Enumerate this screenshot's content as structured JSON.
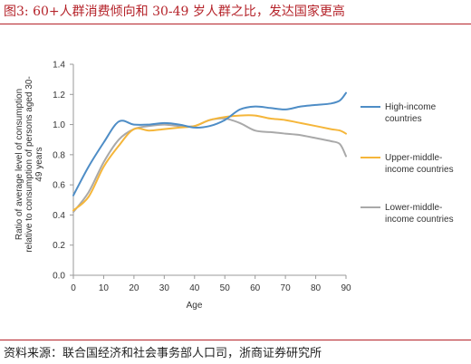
{
  "header": {
    "figure_title": "图3:   60+人群消费倾向和 30-49 岁人群之比，发达国家更高"
  },
  "footer": {
    "source": "资料来源：联合国经济和社会事务部人口司，浙商证券研究所"
  },
  "colors": {
    "accent": "#b5232a",
    "high": "#4e8dc6",
    "upper": "#f5b63a",
    "lower": "#a9a9a9",
    "axis": "#9a9a9a"
  },
  "chart_data": {
    "type": "line",
    "title": "",
    "xlabel": "Age",
    "ylabel": "Ratio of average level of consumption relative to consumption of persons aged 30-49 years",
    "ylabel_lines": [
      "Ratio of average level of consumption",
      "relative to consumption of persons aged 30-",
      "49 years"
    ],
    "xlim": [
      0,
      90
    ],
    "ylim": [
      0,
      1.4
    ],
    "xticks": [
      "0",
      "10",
      "20",
      "30",
      "40",
      "50",
      "60",
      "70",
      "80",
      "90"
    ],
    "yticks": [
      "0.0",
      "0.2",
      "0.4",
      "0.6",
      "0.8",
      "1.0",
      "1.2",
      "1.4"
    ],
    "grid": false,
    "legend_position": "right",
    "x": [
      0,
      5,
      10,
      15,
      20,
      25,
      30,
      35,
      40,
      45,
      50,
      55,
      60,
      65,
      70,
      75,
      80,
      85,
      88,
      90
    ],
    "series": [
      {
        "name": "High-income countries",
        "legend_lines": [
          "High-income",
          "countries"
        ],
        "color": "#4e8dc6",
        "values": [
          0.53,
          0.72,
          0.88,
          1.02,
          1.0,
          1.0,
          1.01,
          1.0,
          0.98,
          0.99,
          1.03,
          1.1,
          1.12,
          1.11,
          1.1,
          1.12,
          1.13,
          1.14,
          1.16,
          1.21
        ]
      },
      {
        "name": "Upper-middle-income countries",
        "legend_lines": [
          "Upper-middle-",
          "income countries"
        ],
        "color": "#f5b63a",
        "values": [
          0.43,
          0.52,
          0.72,
          0.86,
          0.97,
          0.96,
          0.97,
          0.98,
          0.99,
          1.03,
          1.05,
          1.06,
          1.06,
          1.04,
          1.03,
          1.01,
          0.99,
          0.97,
          0.96,
          0.94
        ]
      },
      {
        "name": "Lower-middle-income countries",
        "legend_lines": [
          "Lower-middle-",
          "income countries"
        ],
        "color": "#a9a9a9",
        "values": [
          0.42,
          0.55,
          0.75,
          0.9,
          0.97,
          0.99,
          1.0,
          0.99,
          0.99,
          1.03,
          1.04,
          1.01,
          0.96,
          0.95,
          0.94,
          0.93,
          0.91,
          0.89,
          0.87,
          0.79
        ]
      }
    ]
  }
}
